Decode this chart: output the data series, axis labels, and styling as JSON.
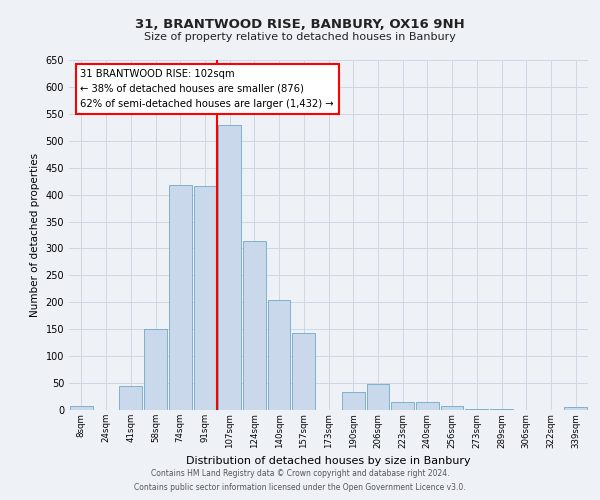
{
  "title": "31, BRANTWOOD RISE, BANBURY, OX16 9NH",
  "subtitle": "Size of property relative to detached houses in Banbury",
  "xlabel": "Distribution of detached houses by size in Banbury",
  "ylabel": "Number of detached properties",
  "bin_labels": [
    "8sqm",
    "24sqm",
    "41sqm",
    "58sqm",
    "74sqm",
    "91sqm",
    "107sqm",
    "124sqm",
    "140sqm",
    "157sqm",
    "173sqm",
    "190sqm",
    "206sqm",
    "223sqm",
    "240sqm",
    "256sqm",
    "273sqm",
    "289sqm",
    "306sqm",
    "322sqm",
    "339sqm"
  ],
  "bar_heights": [
    8,
    0,
    44,
    150,
    417,
    416,
    530,
    313,
    205,
    143,
    0,
    33,
    48,
    15,
    14,
    7,
    2,
    1,
    0,
    0,
    5
  ],
  "bar_color": "#c9d9eb",
  "bar_edge_color": "#6fa8c8",
  "vline_x_index": 6,
  "vline_color": "red",
  "annotation_line1": "31 BRANTWOOD RISE: 102sqm",
  "annotation_line2": "← 38% of detached houses are smaller (876)",
  "annotation_line3": "62% of semi-detached houses are larger (1,432) →",
  "annotation_box_color": "white",
  "annotation_box_edge_color": "red",
  "ylim": [
    0,
    650
  ],
  "yticks": [
    0,
    50,
    100,
    150,
    200,
    250,
    300,
    350,
    400,
    450,
    500,
    550,
    600,
    650
  ],
  "footer1": "Contains HM Land Registry data © Crown copyright and database right 2024.",
  "footer2": "Contains public sector information licensed under the Open Government Licence v3.0.",
  "bg_color": "#eef2f7",
  "grid_color": "#ccd8e4"
}
